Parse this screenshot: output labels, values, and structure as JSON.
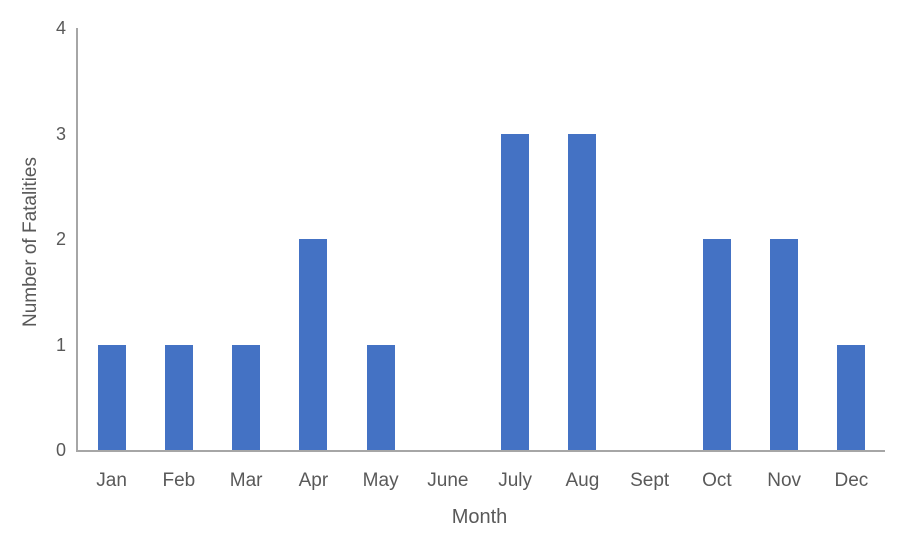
{
  "chart_data": {
    "type": "bar",
    "title": "",
    "xlabel": "Month",
    "ylabel": "Number of Fatalities",
    "categories": [
      "Jan",
      "Feb",
      "Mar",
      "Apr",
      "May",
      "June",
      "July",
      "Aug",
      "Sept",
      "Oct",
      "Nov",
      "Dec"
    ],
    "values": [
      1,
      1,
      1,
      2,
      1,
      0,
      3,
      3,
      0,
      2,
      2,
      1
    ],
    "ylim": [
      0,
      4
    ],
    "yticks": [
      0,
      1,
      2,
      3,
      4
    ],
    "grid": false,
    "legend": false,
    "bar_color": "#4472c4",
    "axis_line_color": "#a6a6a6",
    "text_color": "#595959"
  }
}
